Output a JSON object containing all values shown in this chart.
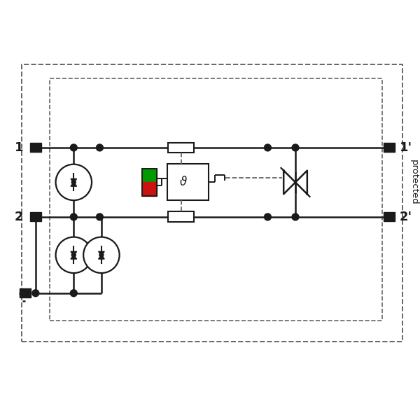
{
  "bg_color": "#ffffff",
  "line_color": "#1a1a1a",
  "dash_color": "#666666",
  "green_color": "#009900",
  "red_color": "#cc1111",
  "figsize": [
    6.0,
    6.0
  ],
  "dpi": 100,
  "label_1": "1",
  "label_2": "2",
  "label_1p": "1'",
  "label_2p": "2'",
  "label_protected": "protected",
  "xlim": [
    0,
    12
  ],
  "ylim": [
    0,
    10
  ]
}
